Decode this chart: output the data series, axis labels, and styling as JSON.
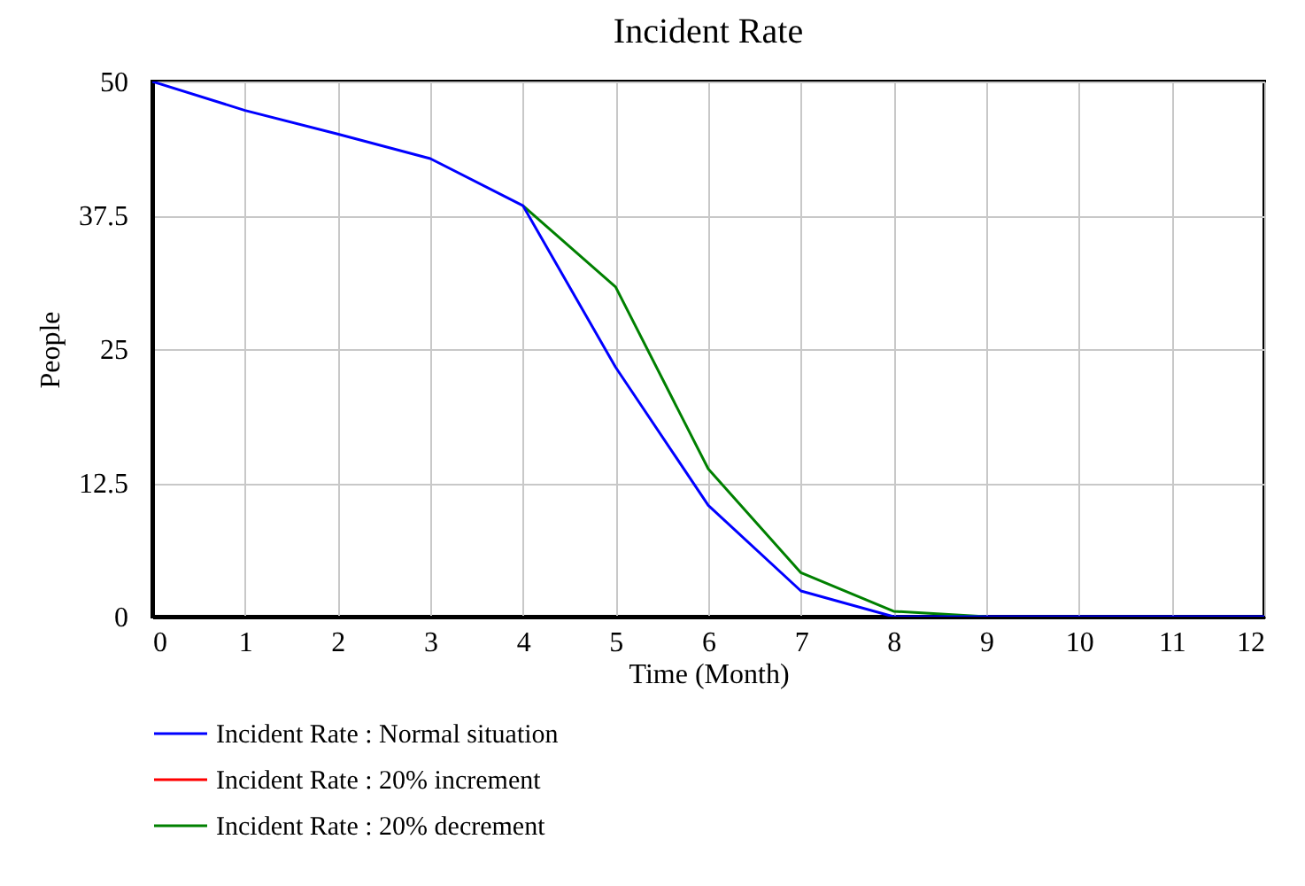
{
  "chart_data": {
    "type": "line",
    "title": "Incident Rate",
    "xlabel": "Time (Month)",
    "ylabel": "People",
    "x": [
      0,
      1,
      2,
      3,
      4,
      5,
      6,
      7,
      8,
      9,
      10,
      11,
      12
    ],
    "series": [
      {
        "name": "Incident Rate : Normal situation",
        "color": "#0000ff",
        "values": [
          50,
          47.3,
          45.1,
          42.8,
          38.4,
          23.3,
          10.4,
          2.4,
          0,
          0,
          0,
          0,
          0
        ]
      },
      {
        "name": "Incident Rate : 20% increment",
        "color": "#ff0000",
        "values": [
          null,
          null,
          null,
          null,
          null,
          null,
          null,
          null,
          null,
          null,
          null,
          null,
          null
        ]
      },
      {
        "name": "Incident Rate : 20% decrement",
        "color": "#008000",
        "values": [
          null,
          null,
          null,
          null,
          38.4,
          30.8,
          13.8,
          4.1,
          0.5,
          0,
          null,
          null,
          null
        ]
      }
    ],
    "xlim": [
      0,
      12
    ],
    "xticks": [
      0,
      1,
      2,
      3,
      4,
      5,
      6,
      7,
      8,
      9,
      10,
      11,
      12
    ],
    "ylim": [
      0,
      50
    ],
    "yticks": [
      0,
      12.5,
      25,
      37.5,
      50
    ],
    "grid": true,
    "legend": "bottom",
    "marker": "none",
    "line_style": "solid"
  }
}
